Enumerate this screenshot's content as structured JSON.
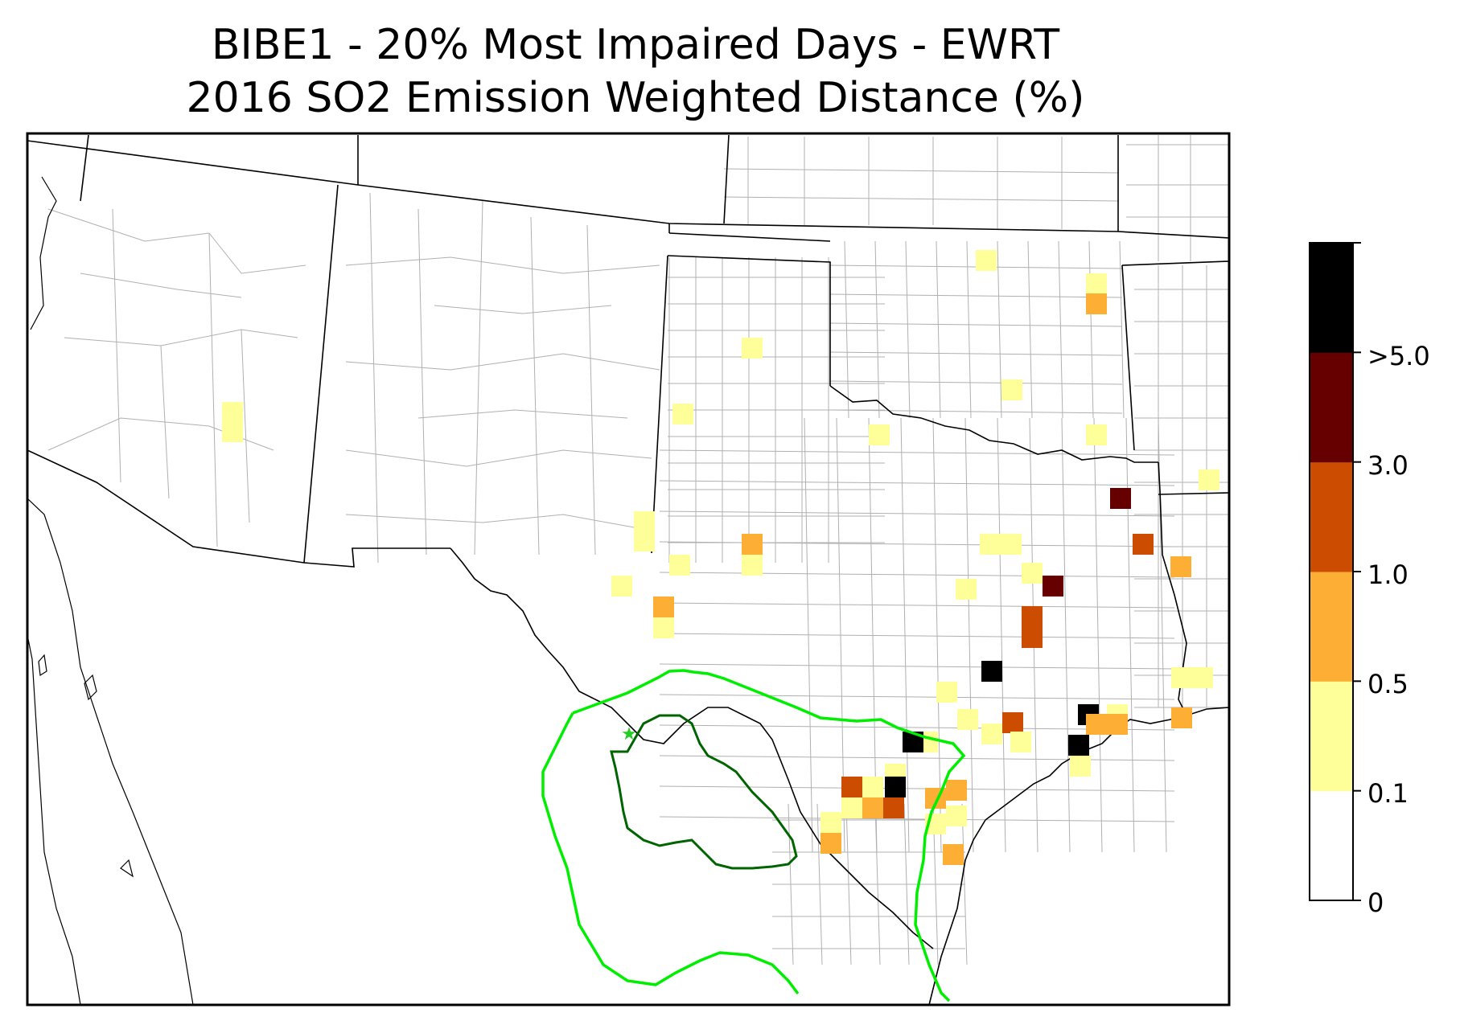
{
  "title": {
    "line1": "BIBE1 - 20% Most Impaired Days - EWRT",
    "line2": "2016 SO2 Emission Weighted Distance (%)"
  },
  "colorbar": {
    "colors": [
      "#ffffff",
      "#ffff99",
      "#fdae34",
      "#cc4c02",
      "#660000",
      "#000000"
    ],
    "tick_labels": [
      "0",
      "0.1",
      "0.5",
      "1.0",
      "3.0",
      ">5.0"
    ]
  },
  "site_marker": {
    "symbol": "★",
    "color": "#22cc22"
  },
  "contours": {
    "inner_color": "#006400",
    "outer_color": "#00ee00"
  },
  "emission_cells": [
    {
      "level": 1
    },
    {
      "level": 1
    },
    {
      "level": 2
    },
    {
      "level": 1
    },
    {
      "level": 1
    },
    {
      "level": 1
    },
    {
      "level": 1
    },
    {
      "level": 1
    },
    {
      "level": 1
    },
    {
      "level": 1
    },
    {
      "level": 4
    },
    {
      "level": 3
    },
    {
      "level": 1
    },
    {
      "level": 2
    },
    {
      "level": 1
    },
    {
      "level": 1
    },
    {
      "level": 1
    },
    {
      "level": 1
    },
    {
      "level": 2
    },
    {
      "level": 2
    },
    {
      "level": 1
    },
    {
      "level": 1
    },
    {
      "level": 1
    },
    {
      "level": 1
    },
    {
      "level": 1
    },
    {
      "level": 4
    },
    {
      "level": 3
    },
    {
      "level": 3
    },
    {
      "level": 1
    },
    {
      "level": 5
    },
    {
      "level": 1
    },
    {
      "level": 1
    },
    {
      "level": 2
    },
    {
      "level": 2
    },
    {
      "level": 1
    },
    {
      "level": 1
    },
    {
      "level": 3
    },
    {
      "level": 1
    },
    {
      "level": 5
    },
    {
      "level": 1
    },
    {
      "level": 5
    },
    {
      "level": 1
    },
    {
      "level": 2
    },
    {
      "level": 2
    },
    {
      "level": 5
    },
    {
      "level": 1
    },
    {
      "level": 3
    },
    {
      "level": 1
    },
    {
      "level": 5
    },
    {
      "level": 3
    },
    {
      "level": 1
    },
    {
      "level": 2
    },
    {
      "level": 1
    },
    {
      "level": 2
    },
    {
      "level": 1
    },
    {
      "level": 1
    },
    {
      "level": 2
    },
    {
      "level": 1
    },
    {
      "level": 1
    },
    {
      "level": 2
    }
  ]
}
